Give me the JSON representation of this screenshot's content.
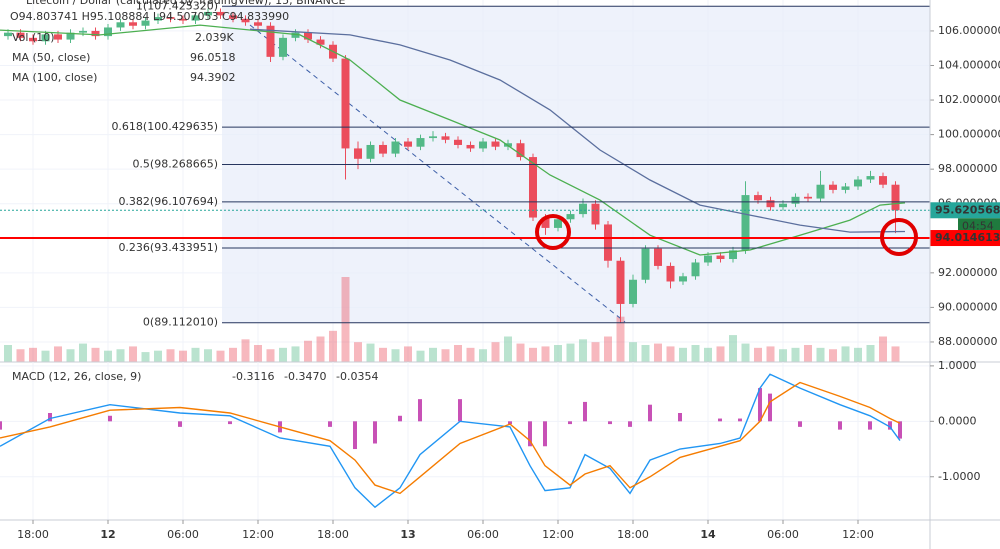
{
  "chart_data": [
    {
      "type": "candlestick",
      "title": "Litecoin / Dollar (calculated by TradingView), 15, BINANCE",
      "ohlc_legend": "O94.803741 H95.108884 L94.507053 C94.833990",
      "up_color": "#53b987",
      "down_color": "#eb4d5c",
      "xlim": [
        -2.64,
        71.76
      ],
      "ylim": [
        86.84,
        107.79
      ],
      "yticks": [
        {
          "value": 88,
          "label": "88.000000"
        },
        {
          "value": 90,
          "label": "90.000000"
        },
        {
          "value": 92,
          "label": "92.000000"
        },
        {
          "value": 94,
          "label": "94.000000"
        },
        {
          "value": 96,
          "label": "96.000000"
        },
        {
          "value": 98,
          "label": "98.000000"
        },
        {
          "value": 100,
          "label": "100.000000"
        },
        {
          "value": 102,
          "label": "102.000000"
        },
        {
          "value": 104,
          "label": "104.000000"
        },
        {
          "value": 106,
          "label": "106.000000"
        }
      ],
      "x": [
        -2,
        -1,
        0,
        1,
        2,
        3,
        4,
        5,
        6,
        7,
        8,
        9,
        10,
        11,
        12,
        13,
        14,
        15,
        16,
        17,
        18,
        19,
        20,
        21,
        22,
        23,
        24,
        25,
        26,
        27,
        28,
        29,
        30,
        31,
        32,
        33,
        34,
        35,
        36,
        37,
        38,
        39,
        40,
        41,
        42,
        43,
        44,
        45,
        46,
        47,
        48,
        49,
        50,
        51,
        52,
        53,
        54,
        55,
        56,
        57,
        58,
        59,
        60,
        61,
        62,
        63,
        64,
        65,
        66,
        67,
        68,
        69
      ],
      "open": [
        105.7,
        105.9,
        105.6,
        105.4,
        105.8,
        105.5,
        105.9,
        106.0,
        105.7,
        106.2,
        106.5,
        106.3,
        106.6,
        106.8,
        106.7,
        106.6,
        106.9,
        107.1,
        106.9,
        106.7,
        106.5,
        106.3,
        104.5,
        105.6,
        105.9,
        105.5,
        105.2,
        104.4,
        99.2,
        98.6,
        99.4,
        98.9,
        99.6,
        99.3,
        99.8,
        99.9,
        99.7,
        99.4,
        99.2,
        99.6,
        99.3,
        99.5,
        98.7,
        95.2,
        94.6,
        95.1,
        95.4,
        96.0,
        94.8,
        92.7,
        90.2,
        91.6,
        93.4,
        92.4,
        91.5,
        91.8,
        92.6,
        93.0,
        92.8,
        93.3,
        96.5,
        96.2,
        95.8,
        96.0,
        96.4,
        96.3,
        97.1,
        96.8,
        97.0,
        97.4,
        97.6,
        97.1
      ],
      "high": [
        106.1,
        106.1,
        105.8,
        106.0,
        106.0,
        106.1,
        106.2,
        106.2,
        106.4,
        106.7,
        106.7,
        106.8,
        107.0,
        107.0,
        106.9,
        107.1,
        107.3,
        107.3,
        107.1,
        106.9,
        106.7,
        106.5,
        105.8,
        106.1,
        106.1,
        105.7,
        105.4,
        104.6,
        99.6,
        99.6,
        99.6,
        99.8,
        99.8,
        100.0,
        100.2,
        100.1,
        99.9,
        99.6,
        99.8,
        99.8,
        99.7,
        99.7,
        98.9,
        95.4,
        95.3,
        95.6,
        96.3,
        96.2,
        95.0,
        92.9,
        91.9,
        93.6,
        93.6,
        92.6,
        92.0,
        92.8,
        93.2,
        93.2,
        93.5,
        97.3,
        96.7,
        96.4,
        96.2,
        96.6,
        96.6,
        97.9,
        97.3,
        97.2,
        97.6,
        97.9,
        97.8,
        97.3
      ],
      "low": [
        105.5,
        105.4,
        105.2,
        105.2,
        105.3,
        105.3,
        105.7,
        105.5,
        105.5,
        106.0,
        106.1,
        106.1,
        106.4,
        106.5,
        106.4,
        106.4,
        106.7,
        106.7,
        106.5,
        106.3,
        106.1,
        104.2,
        104.3,
        105.4,
        105.3,
        105.0,
        104.2,
        97.4,
        98.0,
        98.4,
        98.7,
        98.7,
        99.1,
        99.1,
        99.6,
        99.5,
        99.2,
        99.0,
        99.0,
        99.1,
        99.1,
        98.5,
        95.0,
        94.2,
        94.4,
        94.9,
        95.2,
        94.5,
        92.3,
        89.1,
        90.0,
        91.4,
        92.2,
        91.1,
        91.3,
        91.6,
        92.4,
        92.6,
        92.6,
        93.1,
        96.0,
        95.6,
        95.6,
        95.8,
        96.1,
        96.1,
        96.6,
        96.6,
        96.8,
        97.2,
        96.9,
        94.3
      ],
      "close": [
        105.9,
        105.6,
        105.4,
        105.8,
        105.5,
        105.9,
        106.0,
        105.7,
        106.2,
        106.5,
        106.3,
        106.6,
        106.8,
        106.7,
        106.6,
        106.9,
        107.1,
        106.9,
        106.7,
        106.5,
        106.3,
        104.5,
        105.6,
        105.9,
        105.5,
        105.2,
        104.4,
        99.2,
        98.6,
        99.4,
        98.9,
        99.6,
        99.3,
        99.8,
        99.9,
        99.7,
        99.4,
        99.2,
        99.6,
        99.3,
        99.5,
        98.7,
        95.2,
        94.6,
        95.1,
        95.4,
        96.0,
        94.8,
        92.7,
        90.2,
        91.6,
        93.4,
        92.4,
        91.5,
        91.8,
        92.6,
        93.0,
        92.8,
        93.3,
        96.5,
        96.2,
        95.8,
        96.0,
        96.4,
        96.3,
        97.1,
        96.8,
        97.0,
        97.4,
        97.6,
        97.1,
        95.62
      ],
      "volume": {
        "name": "Vol (10)",
        "value_label": "2.039K",
        "values": [
          1.2,
          0.9,
          1.0,
          0.8,
          1.1,
          0.9,
          1.3,
          1.0,
          0.8,
          0.9,
          1.1,
          0.7,
          0.8,
          0.9,
          0.8,
          1.0,
          0.9,
          0.8,
          1.0,
          1.6,
          1.2,
          0.9,
          1.0,
          1.1,
          1.5,
          1.8,
          2.2,
          6.0,
          1.4,
          1.3,
          1.0,
          0.9,
          1.1,
          0.8,
          1.0,
          0.9,
          1.2,
          1.0,
          0.9,
          1.4,
          1.8,
          1.3,
          1.0,
          1.1,
          1.2,
          1.3,
          1.6,
          1.4,
          1.8,
          3.2,
          1.4,
          1.2,
          1.3,
          1.1,
          1.0,
          1.2,
          1.0,
          1.1,
          1.9,
          1.3,
          1.0,
          1.1,
          0.9,
          1.0,
          1.2,
          1.0,
          0.9,
          1.1,
          1.0,
          1.2,
          1.8,
          1.1
        ]
      },
      "series": [
        {
          "name": "MA (50, close)",
          "color": "#4caf50",
          "value_label": "96.0518",
          "x": [
            -2.64,
            5.36,
            13.36,
            21.36,
            25.36,
            29.36,
            33.36,
            37.36,
            41.36,
            45.36,
            49.36,
            53.36,
            57.36,
            61.36,
            65.36,
            67.76,
            69.76
          ],
          "values": [
            106.05,
            105.77,
            106.34,
            105.77,
            104.32,
            102.0,
            100.85,
            99.69,
            97.66,
            96.21,
            94.18,
            93.03,
            93.32,
            94.18,
            95.05,
            95.92,
            96.0518
          ]
        },
        {
          "name": "MA (100, close)",
          "color": "#5b6f9e",
          "value_label": "94.3902",
          "x": [
            17.36,
            25.36,
            29.36,
            33.36,
            37.36,
            41.36,
            45.36,
            49.36,
            53.36,
            57.36,
            61.36,
            65.36,
            69.76
          ],
          "values": [
            106.1,
            105.77,
            105.19,
            104.32,
            103.16,
            101.43,
            99.11,
            97.37,
            95.92,
            95.34,
            94.76,
            94.36,
            94.3902
          ]
        }
      ],
      "fib_levels": [
        {
          "value": 107.42532,
          "label": "1(107.425320)"
        },
        {
          "value": 100.429635,
          "label": "0.618(100.429635)"
        },
        {
          "value": 98.268665,
          "label": "0.5(98.268665)"
        },
        {
          "value": 96.107694,
          "label": "0.382(96.107694)"
        },
        {
          "value": 93.433951,
          "label": "0.236(93.433951)"
        },
        {
          "value": 89.11201,
          "label": "0(89.112010)"
        }
      ],
      "price_lines": [
        {
          "value": 95.620568,
          "label": "95.620568",
          "color": "#26a69a",
          "style": "dotted"
        },
        {
          "value": 94.014613,
          "label": "94.014613",
          "color": "#ff0000",
          "style": "solid"
        }
      ],
      "countdown": "04:54"
    },
    {
      "type": "macd",
      "title": "MACD (12, 26, close, 9)",
      "xlim": [
        -2.64,
        71.76
      ],
      "ylim": [
        -1.78,
        1.07
      ],
      "yticks": [
        {
          "value": 1,
          "label": "1.0000"
        },
        {
          "value": 0,
          "label": "0.0000"
        },
        {
          "value": -1,
          "label": "-1.0000"
        }
      ],
      "xticks": [
        {
          "value": 0,
          "label": "18:00"
        },
        {
          "value": 6,
          "label": "12"
        },
        {
          "value": 12,
          "label": "06:00"
        },
        {
          "value": 18,
          "label": "12:00"
        },
        {
          "value": 24,
          "label": "18:00"
        },
        {
          "value": 30,
          "label": "13"
        },
        {
          "value": 36,
          "label": "06:00"
        },
        {
          "value": 42,
          "label": "12:00"
        },
        {
          "value": 48,
          "label": "18:00"
        },
        {
          "value": 54,
          "label": "14"
        },
        {
          "value": 60,
          "label": "06:00"
        },
        {
          "value": 66,
          "label": "12:00"
        }
      ],
      "x": [
        -2.64,
        1.36,
        6.16,
        11.76,
        15.76,
        19.76,
        23.76,
        25.76,
        27.36,
        29.36,
        30.96,
        34.16,
        38.16,
        39.76,
        40.96,
        42.96,
        44.16,
        46.16,
        47.76,
        49.36,
        51.76,
        54.96,
        56.56,
        58.16,
        58.96,
        61.36,
        64.56,
        66.96,
        68.56,
        69.36
      ],
      "series": [
        {
          "kind": "histogram",
          "color": "#b5179e",
          "value_label": "-0.3116",
          "values": [
            -0.15,
            0.15,
            0.1,
            -0.1,
            -0.05,
            -0.2,
            -0.1,
            -0.5,
            -0.4,
            0.1,
            0.4,
            0.4,
            -0.05,
            -0.45,
            -0.45,
            -0.05,
            0.35,
            -0.05,
            -0.1,
            0.3,
            0.15,
            0.05,
            0.05,
            0.6,
            0.5,
            -0.1,
            -0.15,
            -0.15,
            -0.15,
            -0.3116
          ]
        },
        {
          "kind": "line",
          "color": "#2196f3",
          "value_label": "-0.3470",
          "values": [
            -0.45,
            0.05,
            0.3,
            0.15,
            0.1,
            -0.3,
            -0.45,
            -1.2,
            -1.55,
            -1.2,
            -0.6,
            0.0,
            -0.1,
            -0.8,
            -1.25,
            -1.2,
            -0.6,
            -0.85,
            -1.3,
            -0.7,
            -0.5,
            -0.4,
            -0.3,
            0.6,
            0.85,
            0.6,
            0.3,
            0.1,
            -0.1,
            -0.347
          ]
        },
        {
          "kind": "line",
          "color": "#f57c00",
          "value_label": "-0.0354",
          "values": [
            -0.3,
            -0.1,
            0.2,
            0.25,
            0.15,
            -0.1,
            -0.35,
            -0.7,
            -1.15,
            -1.3,
            -1.0,
            -0.4,
            -0.05,
            -0.35,
            -0.8,
            -1.15,
            -0.95,
            -0.8,
            -1.2,
            -1.0,
            -0.65,
            -0.45,
            -0.35,
            0.0,
            0.35,
            0.7,
            0.45,
            0.25,
            0.05,
            -0.0354
          ]
        }
      ]
    }
  ]
}
